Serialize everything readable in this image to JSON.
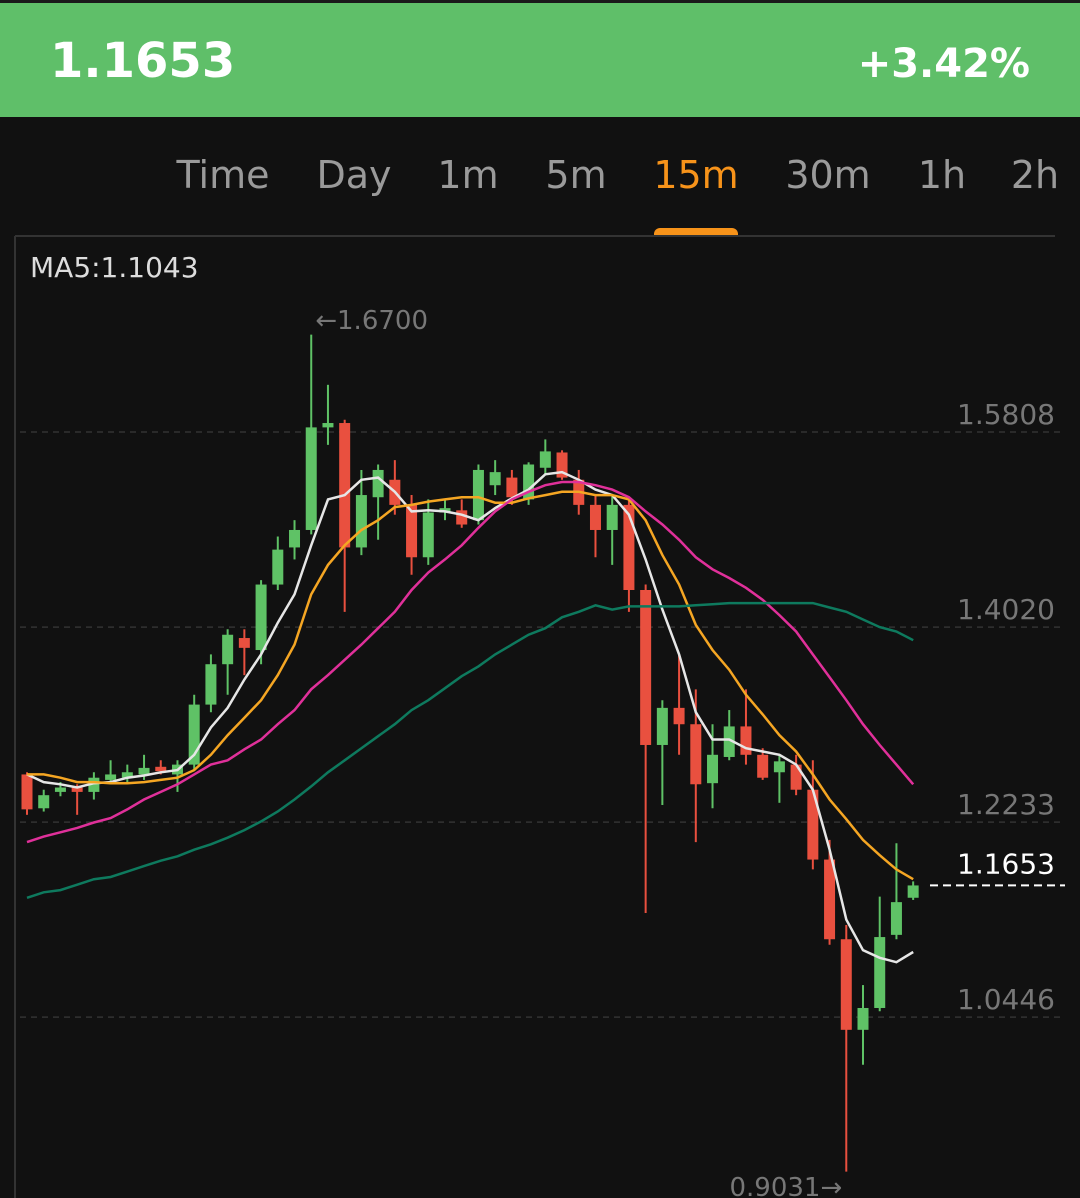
{
  "header": {
    "price": "1.1653",
    "change": "+3.42%"
  },
  "tabs": {
    "items": [
      "Time",
      "Day",
      "1m",
      "5m",
      "15m",
      "30m",
      "1h",
      "2h"
    ],
    "active": 4
  },
  "chart_data": {
    "type": "candlestick",
    "legend": "MA5:1.1043",
    "ylim": [
      0.8789,
      1.7567
    ],
    "yticks": [
      1.5808,
      {
        "value": 1.402,
        "label": "1.4020"
      },
      1.2233,
      1.0446
    ],
    "grid": true,
    "up_color": "#5fc266",
    "down_color": "#e9503f",
    "last_price": 1.1653,
    "max_label": {
      "value": 1.67,
      "label": "←1.6700"
    },
    "min_label": {
      "value": 0.9031,
      "label": "0.9031→"
    },
    "open": [
      1.267,
      1.236,
      1.251,
      1.255,
      1.251,
      1.262,
      1.264,
      1.267,
      1.274,
      1.267,
      1.276,
      1.331,
      1.368,
      1.392,
      1.381,
      1.441,
      1.475,
      1.491,
      1.585,
      1.589,
      1.475,
      1.521,
      1.537,
      1.514,
      1.466,
      1.507,
      1.509,
      1.5,
      1.532,
      1.539,
      1.519,
      1.548,
      1.562,
      1.537,
      1.514,
      1.491,
      1.514,
      1.436,
      1.294,
      1.328,
      1.313,
      1.259,
      1.283,
      1.311,
      1.285,
      1.269,
      1.276,
      1.253,
      1.189,
      1.116,
      1.033,
      1.053,
      1.12,
      1.154
    ],
    "high": [
      1.269,
      1.253,
      1.26,
      1.258,
      1.269,
      1.28,
      1.276,
      1.285,
      1.28,
      1.28,
      1.34,
      1.377,
      1.4,
      1.4,
      1.445,
      1.485,
      1.5,
      1.67,
      1.624,
      1.592,
      1.546,
      1.551,
      1.555,
      1.523,
      1.519,
      1.519,
      1.519,
      1.551,
      1.555,
      1.546,
      1.553,
      1.574,
      1.564,
      1.546,
      1.523,
      1.523,
      1.519,
      1.441,
      1.335,
      1.377,
      1.345,
      1.313,
      1.326,
      1.345,
      1.291,
      1.285,
      1.285,
      1.28,
      1.207,
      1.129,
      1.074,
      1.155,
      1.204,
      1.169
    ],
    "low": [
      1.23,
      1.233,
      1.247,
      1.23,
      1.244,
      1.258,
      1.26,
      1.262,
      1.267,
      1.251,
      1.271,
      1.324,
      1.34,
      1.358,
      1.368,
      1.436,
      1.464,
      1.487,
      1.569,
      1.416,
      1.468,
      1.482,
      1.505,
      1.45,
      1.459,
      1.5,
      1.493,
      1.496,
      1.523,
      1.514,
      1.514,
      1.542,
      1.537,
      1.505,
      1.466,
      1.459,
      1.416,
      1.14,
      1.239,
      1.285,
      1.205,
      1.236,
      1.28,
      1.276,
      1.262,
      1.241,
      1.248,
      1.18,
      1.111,
      0.9031,
      1.001,
      1.05,
      1.116,
      1.152
    ],
    "close": [
      1.235,
      1.248,
      1.255,
      1.251,
      1.264,
      1.267,
      1.269,
      1.273,
      1.27,
      1.276,
      1.331,
      1.368,
      1.395,
      1.383,
      1.441,
      1.473,
      1.491,
      1.585,
      1.589,
      1.475,
      1.523,
      1.546,
      1.514,
      1.466,
      1.507,
      1.511,
      1.496,
      1.546,
      1.544,
      1.521,
      1.551,
      1.563,
      1.539,
      1.514,
      1.491,
      1.514,
      1.436,
      1.294,
      1.328,
      1.313,
      1.258,
      1.285,
      1.311,
      1.285,
      1.264,
      1.279,
      1.253,
      1.189,
      1.116,
      1.033,
      1.053,
      1.118,
      1.15,
      1.1653
    ],
    "series": [
      {
        "color": "#e6e6e6",
        "values": [
          1.267,
          1.26,
          1.258,
          1.255,
          1.259,
          1.26,
          1.264,
          1.266,
          1.269,
          1.271,
          1.285,
          1.31,
          1.328,
          1.354,
          1.377,
          1.406,
          1.432,
          1.477,
          1.519,
          1.523,
          1.537,
          1.539,
          1.526,
          1.508,
          1.509,
          1.508,
          1.505,
          1.5,
          1.511,
          1.52,
          1.528,
          1.542,
          1.544,
          1.537,
          1.528,
          1.523,
          1.505,
          1.464,
          1.418,
          1.377,
          1.324,
          1.299,
          1.299,
          1.291,
          1.288,
          1.285,
          1.276,
          1.253,
          1.198,
          1.134,
          1.106,
          1.099,
          1.095,
          1.1043
        ]
      },
      {
        "color": "#f5a623",
        "values": [
          1.267,
          1.267,
          1.264,
          1.26,
          1.26,
          1.259,
          1.259,
          1.26,
          1.262,
          1.264,
          1.271,
          1.285,
          1.303,
          1.319,
          1.335,
          1.358,
          1.386,
          1.432,
          1.459,
          1.477,
          1.491,
          1.5,
          1.512,
          1.514,
          1.517,
          1.519,
          1.521,
          1.521,
          1.516,
          1.516,
          1.52,
          1.523,
          1.526,
          1.526,
          1.523,
          1.523,
          1.519,
          1.5,
          1.468,
          1.441,
          1.404,
          1.381,
          1.363,
          1.34,
          1.322,
          1.303,
          1.288,
          1.267,
          1.244,
          1.226,
          1.207,
          1.193,
          1.18,
          1.171
        ]
      },
      {
        "color": "#e0309a",
        "values": [
          1.205,
          1.21,
          1.214,
          1.218,
          1.223,
          1.227,
          1.235,
          1.244,
          1.251,
          1.258,
          1.267,
          1.276,
          1.28,
          1.29,
          1.299,
          1.313,
          1.326,
          1.345,
          1.358,
          1.372,
          1.386,
          1.401,
          1.416,
          1.436,
          1.452,
          1.464,
          1.477,
          1.493,
          1.508,
          1.519,
          1.526,
          1.532,
          1.535,
          1.535,
          1.532,
          1.528,
          1.521,
          1.508,
          1.496,
          1.482,
          1.466,
          1.455,
          1.447,
          1.438,
          1.427,
          1.413,
          1.398,
          1.377,
          1.356,
          1.335,
          1.313,
          1.294,
          1.276,
          1.258
        ]
      },
      {
        "color": "#0e7a5e",
        "values": [
          1.154,
          1.159,
          1.161,
          1.166,
          1.171,
          1.173,
          1.178,
          1.183,
          1.188,
          1.192,
          1.198,
          1.203,
          1.209,
          1.216,
          1.224,
          1.233,
          1.244,
          1.256,
          1.269,
          1.28,
          1.291,
          1.302,
          1.313,
          1.326,
          1.335,
          1.346,
          1.357,
          1.366,
          1.377,
          1.386,
          1.395,
          1.401,
          1.411,
          1.416,
          1.422,
          1.418,
          1.421,
          1.421,
          1.421,
          1.421,
          1.422,
          1.423,
          1.424,
          1.424,
          1.424,
          1.424,
          1.424,
          1.424,
          1.42,
          1.416,
          1.409,
          1.402,
          1.398,
          1.39
        ]
      }
    ]
  }
}
